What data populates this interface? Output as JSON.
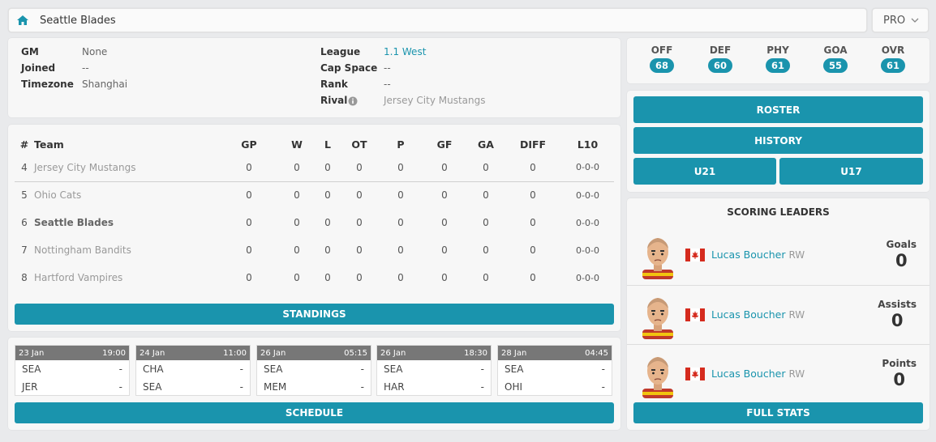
{
  "header": {
    "team_name": "Seattle Blades",
    "level_select": "PRO",
    "home_icon": "home-icon"
  },
  "info": {
    "left": [
      {
        "key": "GM",
        "value": "None"
      },
      {
        "key": "Joined",
        "value": "--"
      },
      {
        "key": "Timezone",
        "value": "Shanghai"
      }
    ],
    "right": [
      {
        "key": "League",
        "value": "1.1 West"
      },
      {
        "key": "Cap Space",
        "value": "--"
      },
      {
        "key": "Rank",
        "value": "--"
      },
      {
        "key": "Rival",
        "value": "Jersey City Mustangs"
      }
    ]
  },
  "ratings": [
    {
      "label": "OFF",
      "value": "68"
    },
    {
      "label": "DEF",
      "value": "60"
    },
    {
      "label": "PHY",
      "value": "61"
    },
    {
      "label": "GOA",
      "value": "55"
    },
    {
      "label": "OVR",
      "value": "61"
    }
  ],
  "nav": {
    "roster": "ROSTER",
    "history": "HISTORY",
    "u21": "U21",
    "u17": "U17"
  },
  "standings": {
    "headers": [
      "#",
      "Team",
      "GP",
      "W",
      "L",
      "OT",
      "P",
      "GF",
      "GA",
      "DIFF",
      "L10"
    ],
    "rows": [
      {
        "rank": "4",
        "team": "Jersey City Mustangs",
        "gp": "0",
        "w": "0",
        "l": "0",
        "ot": "0",
        "p": "0",
        "gf": "0",
        "ga": "0",
        "diff": "0",
        "l10": "0-0-0"
      },
      {
        "rank": "5",
        "team": "Ohio Cats",
        "gp": "0",
        "w": "0",
        "l": "0",
        "ot": "0",
        "p": "0",
        "gf": "0",
        "ga": "0",
        "diff": "0",
        "l10": "0-0-0"
      },
      {
        "rank": "6",
        "team": "Seattle Blades",
        "gp": "0",
        "w": "0",
        "l": "0",
        "ot": "0",
        "p": "0",
        "gf": "0",
        "ga": "0",
        "diff": "0",
        "l10": "0-0-0"
      },
      {
        "rank": "7",
        "team": "Nottingham Bandits",
        "gp": "0",
        "w": "0",
        "l": "0",
        "ot": "0",
        "p": "0",
        "gf": "0",
        "ga": "0",
        "diff": "0",
        "l10": "0-0-0"
      },
      {
        "rank": "8",
        "team": "Hartford Vampires",
        "gp": "0",
        "w": "0",
        "l": "0",
        "ot": "0",
        "p": "0",
        "gf": "0",
        "ga": "0",
        "diff": "0",
        "l10": "0-0-0"
      }
    ],
    "button": "STANDINGS"
  },
  "schedule": {
    "games": [
      {
        "date": "23 Jan",
        "time": "19:00",
        "home": "SEA",
        "home_score": "-",
        "away": "JER",
        "away_score": "-"
      },
      {
        "date": "24 Jan",
        "time": "11:00",
        "home": "CHA",
        "home_score": "-",
        "away": "SEA",
        "away_score": "-"
      },
      {
        "date": "26 Jan",
        "time": "05:15",
        "home": "SEA",
        "home_score": "-",
        "away": "MEM",
        "away_score": "-"
      },
      {
        "date": "26 Jan",
        "time": "18:30",
        "home": "SEA",
        "home_score": "-",
        "away": "HAR",
        "away_score": "-"
      },
      {
        "date": "28 Jan",
        "time": "04:45",
        "home": "SEA",
        "home_score": "-",
        "away": "OHI",
        "away_score": "-"
      }
    ],
    "button": "SCHEDULE"
  },
  "leaders": {
    "title": "SCORING LEADERS",
    "items": [
      {
        "name": "Lucas Boucher",
        "pos": "RW",
        "stat_label": "Goals",
        "stat_value": "0",
        "flag": "canada-flag-icon"
      },
      {
        "name": "Lucas Boucher",
        "pos": "RW",
        "stat_label": "Assists",
        "stat_value": "0",
        "flag": "canada-flag-icon"
      },
      {
        "name": "Lucas Boucher",
        "pos": "RW",
        "stat_label": "Points",
        "stat_value": "0",
        "flag": "canada-flag-icon"
      }
    ],
    "button": "FULL STATS"
  },
  "colors": {
    "accent": "#1a94ad",
    "background": "#e9eaec",
    "card": "#f7f7f7"
  }
}
